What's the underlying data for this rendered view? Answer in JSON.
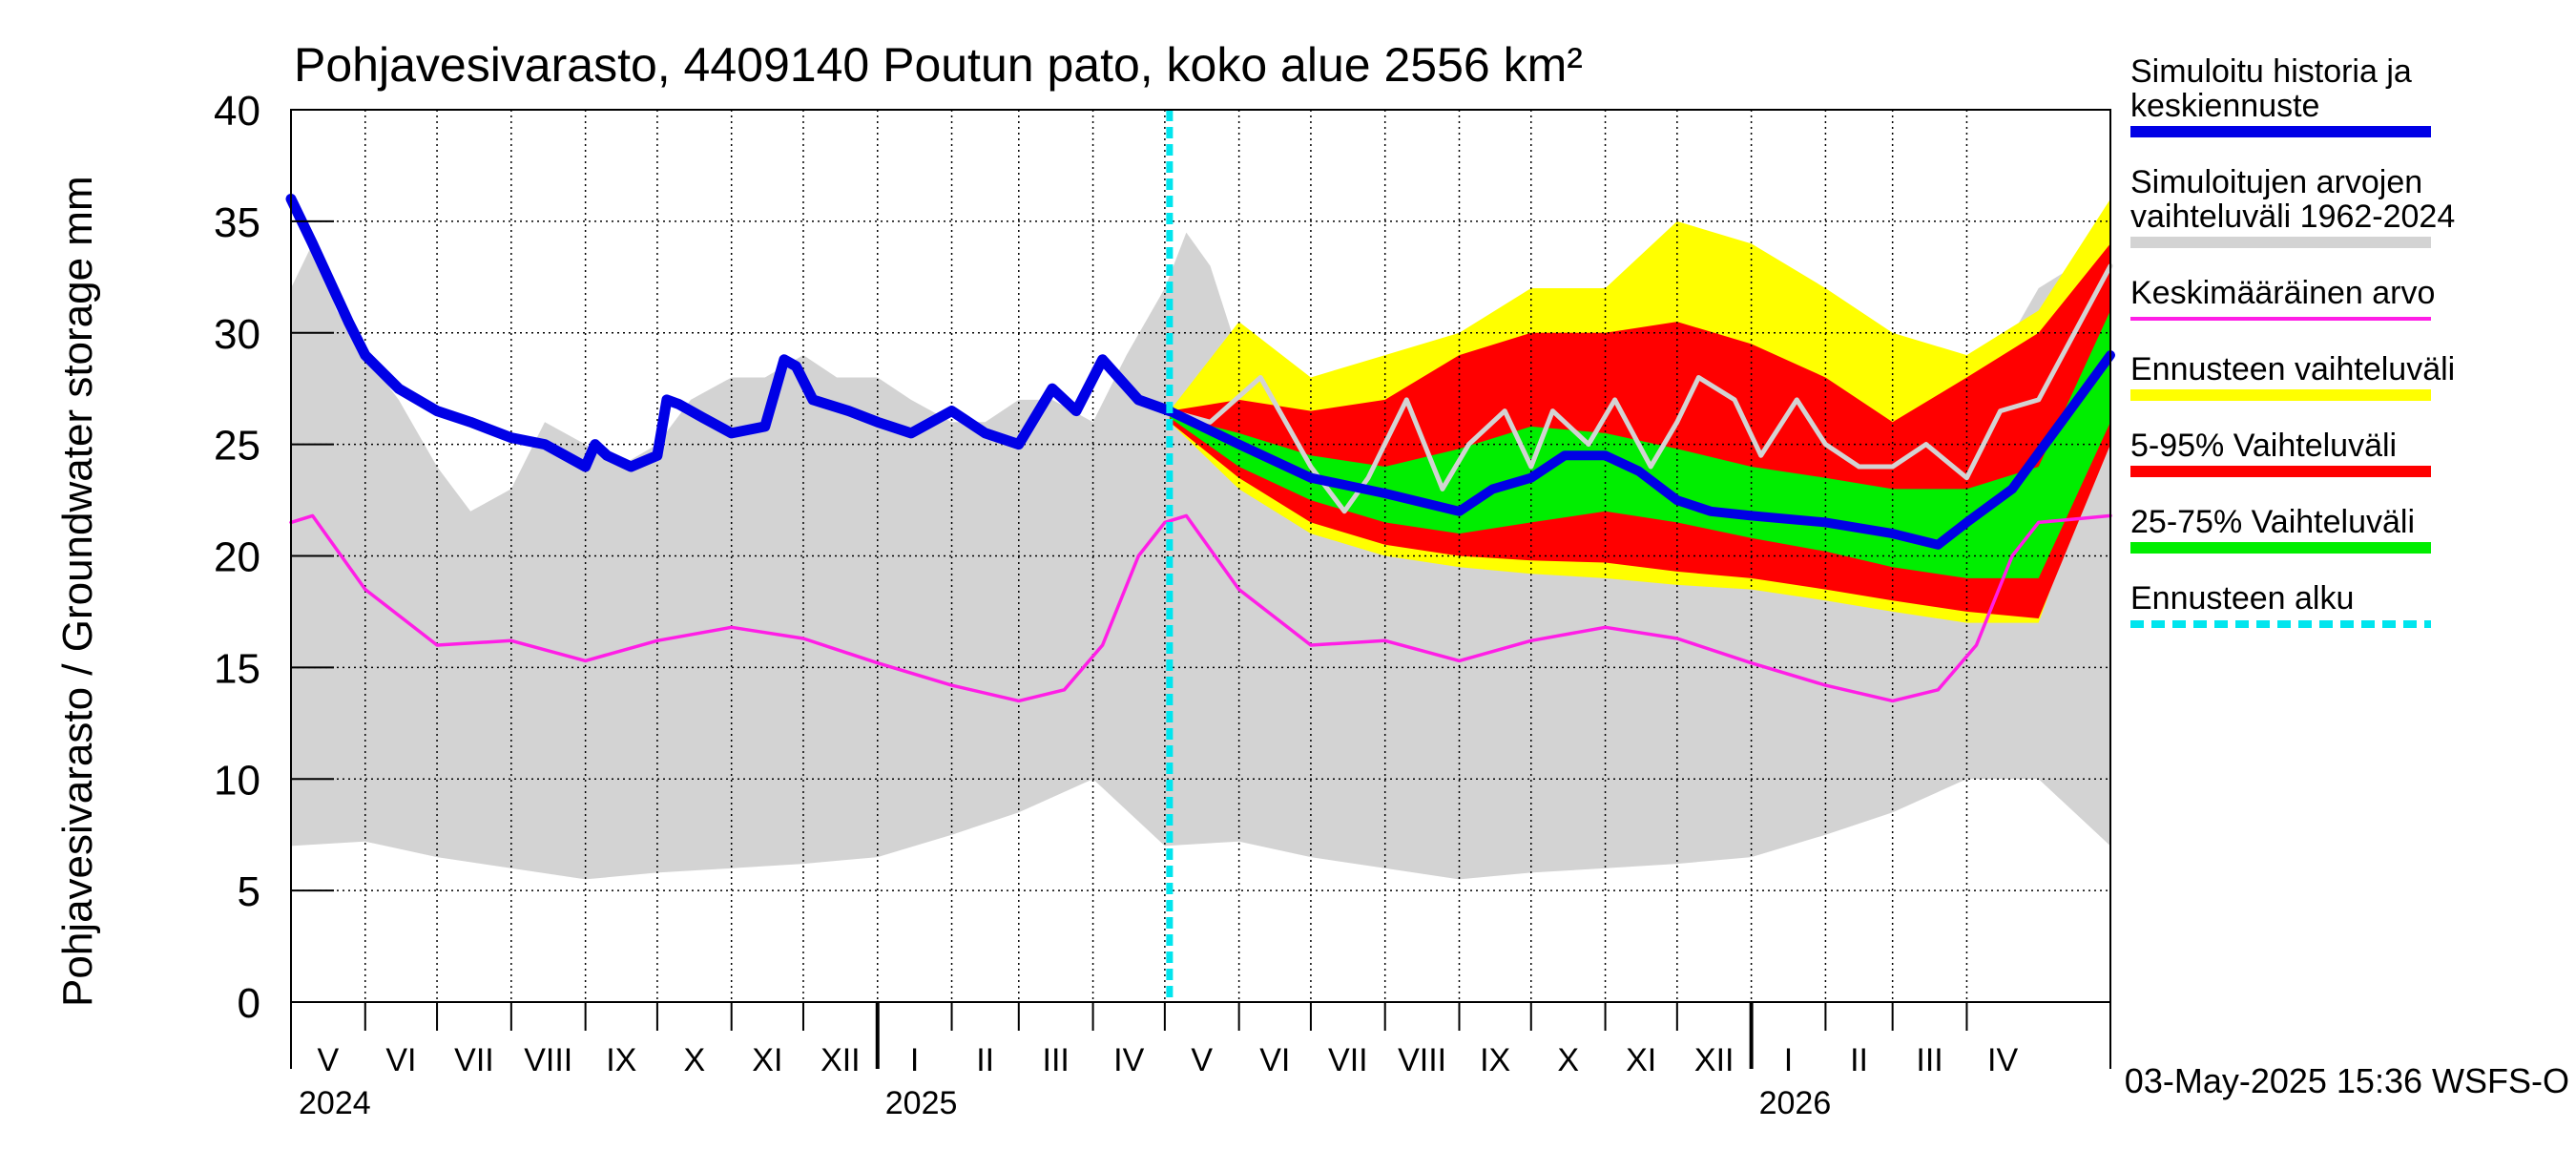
{
  "chart_data": {
    "type": "area",
    "title": "Pohjavesivarasto, 4409140 Poutun pato, koko alue 2556 km²",
    "ylabel": "Pohjavesivarasto / Groundwater storage   mm",
    "xlabel": "",
    "ylim": [
      0,
      40
    ],
    "yticks": [
      "0",
      "5",
      "10",
      "15",
      "20",
      "25",
      "30",
      "35",
      "40"
    ],
    "xlim": [
      "2024-05-01",
      "2026-05-31"
    ],
    "grid": true,
    "legend_position": "right",
    "month_labels": [
      {
        "label": "V",
        "start": "2024-05-01",
        "end": "2024-06-01"
      },
      {
        "label": "VI",
        "start": "2024-06-01",
        "end": "2024-07-01"
      },
      {
        "label": "VII",
        "start": "2024-07-01",
        "end": "2024-08-01"
      },
      {
        "label": "VIII",
        "start": "2024-08-01",
        "end": "2024-09-01"
      },
      {
        "label": "IX",
        "start": "2024-09-01",
        "end": "2024-10-01"
      },
      {
        "label": "X",
        "start": "2024-10-01",
        "end": "2024-11-01"
      },
      {
        "label": "XI",
        "start": "2024-11-01",
        "end": "2024-12-01"
      },
      {
        "label": "XII",
        "start": "2024-12-01",
        "end": "2025-01-01"
      },
      {
        "label": "I",
        "start": "2025-01-01",
        "end": "2025-02-01"
      },
      {
        "label": "II",
        "start": "2025-02-01",
        "end": "2025-03-01"
      },
      {
        "label": "III",
        "start": "2025-03-01",
        "end": "2025-04-01"
      },
      {
        "label": "IV",
        "start": "2025-04-01",
        "end": "2025-05-01"
      },
      {
        "label": "V",
        "start": "2025-05-01",
        "end": "2025-06-01"
      },
      {
        "label": "VI",
        "start": "2025-06-01",
        "end": "2025-07-01"
      },
      {
        "label": "VII",
        "start": "2025-07-01",
        "end": "2025-08-01"
      },
      {
        "label": "VIII",
        "start": "2025-08-01",
        "end": "2025-09-01"
      },
      {
        "label": "IX",
        "start": "2025-09-01",
        "end": "2025-10-01"
      },
      {
        "label": "X",
        "start": "2025-10-01",
        "end": "2025-11-01"
      },
      {
        "label": "XI",
        "start": "2025-11-01",
        "end": "2025-12-01"
      },
      {
        "label": "XII",
        "start": "2025-12-01",
        "end": "2026-01-01"
      },
      {
        "label": "I",
        "start": "2026-01-01",
        "end": "2026-02-01"
      },
      {
        "label": "II",
        "start": "2026-02-01",
        "end": "2026-03-01"
      },
      {
        "label": "III",
        "start": "2026-03-01",
        "end": "2026-04-01"
      },
      {
        "label": "IV",
        "start": "2026-04-01",
        "end": "2026-05-01"
      }
    ],
    "year_labels": [
      {
        "label": "2024",
        "date": "2024-05-01"
      },
      {
        "label": "2025",
        "date": "2025-01-01"
      },
      {
        "label": "2026",
        "date": "2026-01-01"
      }
    ],
    "forecast_start": "2025-05-03",
    "footer": "03-May-2025 15:36 WSFS-O",
    "colors": {
      "history": "#0000e6",
      "range": "#d3d3d3",
      "mean": "#ff1ee6",
      "forecast_range": "#ffff00",
      "p5_95": "#ff0000",
      "p25_75": "#00ee00",
      "forecast_start": "#00e5ee",
      "median": "#d3d3d3"
    },
    "legend": [
      {
        "key": "history",
        "label": "Simuloitu historia ja keskiennuste",
        "lines": [
          "Simuloitu historia ja",
          "keskiennuste"
        ]
      },
      {
        "key": "range",
        "label": "Simuloitujen arvojen vaihteluväli 1962-2024",
        "lines": [
          "Simuloitujen arvojen",
          "vaihteluväli 1962-2024"
        ]
      },
      {
        "key": "mean",
        "label": "Keskimääräinen arvo",
        "lines": [
          "Keskimääräinen arvo"
        ]
      },
      {
        "key": "forecast_range",
        "label": "Ennusteen vaihteluväli",
        "lines": [
          "Ennusteen vaihteluväli"
        ]
      },
      {
        "key": "p5_95",
        "label": "5-95% Vaihteluväli",
        "lines": [
          "5-95% Vaihteluväli"
        ]
      },
      {
        "key": "p25_75",
        "label": "25-75% Vaihteluväli",
        "lines": [
          "25-75% Vaihteluväli"
        ]
      },
      {
        "key": "forecast_start",
        "label": "Ennusteen alku",
        "lines": [
          "Ennusteen alku"
        ]
      }
    ],
    "series": {
      "range_upper": {
        "x": [
          "2024-05-01",
          "2024-05-10",
          "2024-05-20",
          "2024-06-01",
          "2024-06-15",
          "2024-07-01",
          "2024-07-15",
          "2024-08-01",
          "2024-08-15",
          "2024-09-01",
          "2024-09-15",
          "2024-10-01",
          "2024-10-15",
          "2024-11-01",
          "2024-11-15",
          "2024-12-01",
          "2024-12-15",
          "2025-01-01",
          "2025-01-15",
          "2025-02-01",
          "2025-02-15",
          "2025-03-01",
          "2025-03-15",
          "2025-04-01",
          "2025-04-15",
          "2025-05-01",
          "2025-05-10",
          "2025-05-20",
          "2025-06-01",
          "2025-06-15",
          "2025-07-01",
          "2025-07-15",
          "2025-08-01",
          "2025-08-15",
          "2025-09-01",
          "2025-09-15",
          "2025-10-01",
          "2025-10-15",
          "2025-11-01",
          "2025-11-15",
          "2025-12-01",
          "2025-12-15",
          "2026-01-01",
          "2026-01-15",
          "2026-02-01",
          "2026-02-15",
          "2026-03-01",
          "2026-03-15",
          "2026-04-01",
          "2026-04-15",
          "2026-05-01",
          "2026-05-31"
        ],
        "y": [
          32,
          34,
          31,
          29,
          27,
          24,
          22,
          23,
          26,
          25,
          24,
          25,
          27,
          28,
          28,
          29,
          28,
          28,
          27,
          26,
          26,
          27,
          27,
          26,
          29,
          32,
          34.5,
          33,
          29,
          27,
          24,
          22,
          23,
          26,
          25,
          24,
          25,
          27,
          28,
          28,
          29,
          28,
          28,
          27,
          26,
          26,
          27,
          27,
          26,
          29,
          32,
          34
        ]
      },
      "range_lower": {
        "x": [
          "2024-05-01",
          "2024-06-01",
          "2024-07-01",
          "2024-08-01",
          "2024-09-01",
          "2024-10-01",
          "2024-11-01",
          "2024-12-01",
          "2025-01-01",
          "2025-02-01",
          "2025-03-01",
          "2025-04-01",
          "2025-05-01",
          "2025-06-01",
          "2025-07-01",
          "2025-08-01",
          "2025-09-01",
          "2025-10-01",
          "2025-11-01",
          "2025-12-01",
          "2026-01-01",
          "2026-02-01",
          "2026-03-01",
          "2026-04-01",
          "2026-05-01",
          "2026-05-31"
        ],
        "y": [
          7,
          7.2,
          6.5,
          6,
          5.5,
          5.8,
          6,
          6.2,
          6.5,
          7.5,
          8.5,
          10,
          7,
          7.2,
          6.5,
          6,
          5.5,
          5.8,
          6,
          6.2,
          6.5,
          7.5,
          8.5,
          10,
          10,
          7
        ]
      },
      "mean": {
        "x": [
          "2024-05-01",
          "2024-05-10",
          "2024-06-01",
          "2024-07-01",
          "2024-08-01",
          "2024-09-01",
          "2024-10-01",
          "2024-11-01",
          "2024-12-01",
          "2025-01-01",
          "2025-02-01",
          "2025-03-01",
          "2025-03-20",
          "2025-04-05",
          "2025-04-20",
          "2025-05-01",
          "2025-05-10",
          "2025-06-01",
          "2025-07-01",
          "2025-08-01",
          "2025-09-01",
          "2025-10-01",
          "2025-11-01",
          "2025-12-01",
          "2026-01-01",
          "2026-02-01",
          "2026-03-01",
          "2026-03-20",
          "2026-04-05",
          "2026-04-20",
          "2026-05-01",
          "2026-05-31"
        ],
        "y": [
          21.5,
          21.8,
          18.5,
          16,
          16.2,
          15.3,
          16.2,
          16.8,
          16.3,
          15.2,
          14.2,
          13.5,
          14,
          16,
          20,
          21.5,
          21.8,
          18.5,
          16,
          16.2,
          15.3,
          16.2,
          16.8,
          16.3,
          15.2,
          14.2,
          13.5,
          14,
          16,
          20,
          21.5,
          21.8
        ]
      },
      "history": {
        "x": [
          "2024-05-01",
          "2024-05-10",
          "2024-05-25",
          "2024-06-01",
          "2024-06-15",
          "2024-07-01",
          "2024-07-15",
          "2024-08-01",
          "2024-08-15",
          "2024-09-01",
          "2024-09-05",
          "2024-09-10",
          "2024-09-20",
          "2024-10-01",
          "2024-10-05",
          "2024-10-10",
          "2024-10-20",
          "2024-11-01",
          "2024-11-15",
          "2024-11-23",
          "2024-11-28",
          "2024-12-05",
          "2024-12-20",
          "2025-01-01",
          "2025-01-15",
          "2025-02-01",
          "2025-02-15",
          "2025-03-01",
          "2025-03-15",
          "2025-03-25",
          "2025-04-05",
          "2025-04-20",
          "2025-05-03"
        ],
        "y": [
          36,
          34,
          30.5,
          29,
          27.5,
          26.5,
          26,
          25.3,
          25,
          24,
          25,
          24.5,
          24,
          24.5,
          27,
          26.8,
          26.2,
          25.5,
          25.8,
          28.8,
          28.5,
          27,
          26.5,
          26,
          25.5,
          26.5,
          25.5,
          25,
          27.5,
          26.5,
          28.8,
          27,
          26.5
        ]
      },
      "forecast_range_upper": {
        "x": [
          "2025-05-03",
          "2025-06-01",
          "2025-07-01",
          "2025-08-01",
          "2025-09-01",
          "2025-10-01",
          "2025-11-01",
          "2025-12-01",
          "2026-01-01",
          "2026-02-01",
          "2026-03-01",
          "2026-04-01",
          "2026-05-01",
          "2026-05-31"
        ],
        "y": [
          26.5,
          30.5,
          28,
          29,
          30,
          32,
          32,
          35,
          34,
          32,
          30,
          29,
          31,
          36
        ]
      },
      "forecast_range_lower": {
        "x": [
          "2025-05-03",
          "2025-06-01",
          "2025-07-01",
          "2025-08-01",
          "2025-09-01",
          "2025-10-01",
          "2025-11-01",
          "2025-12-01",
          "2026-01-01",
          "2026-02-01",
          "2026-03-01",
          "2026-04-01",
          "2026-05-01",
          "2026-05-31"
        ],
        "y": [
          26,
          23,
          21,
          20,
          19.5,
          19.2,
          19,
          18.7,
          18.5,
          18,
          17.5,
          17,
          17,
          26
        ]
      },
      "p5_95_upper": {
        "x": [
          "2025-05-03",
          "2025-06-01",
          "2025-07-01",
          "2025-08-01",
          "2025-09-01",
          "2025-10-01",
          "2025-11-01",
          "2025-12-01",
          "2026-01-01",
          "2026-02-01",
          "2026-03-01",
          "2026-04-01",
          "2026-05-01",
          "2026-05-31"
        ],
        "y": [
          26.5,
          27,
          26.5,
          27,
          29,
          30,
          30,
          30.5,
          29.5,
          28,
          26,
          28,
          30,
          34
        ]
      },
      "p5_95_lower": {
        "x": [
          "2025-05-03",
          "2025-06-01",
          "2025-07-01",
          "2025-08-01",
          "2025-09-01",
          "2025-10-01",
          "2025-11-01",
          "2025-12-01",
          "2026-01-01",
          "2026-02-01",
          "2026-03-01",
          "2026-04-01",
          "2026-05-01",
          "2026-05-31"
        ],
        "y": [
          26,
          23.5,
          21.5,
          20.5,
          20,
          19.8,
          19.7,
          19.3,
          19,
          18.5,
          18,
          17.5,
          17.2,
          25
        ]
      },
      "p25_75_upper": {
        "x": [
          "2025-05-03",
          "2025-06-01",
          "2025-07-01",
          "2025-08-01",
          "2025-09-01",
          "2025-10-01",
          "2025-11-01",
          "2025-12-01",
          "2026-01-01",
          "2026-02-01",
          "2026-03-01",
          "2026-04-01",
          "2026-05-01",
          "2026-05-31"
        ],
        "y": [
          26.3,
          25.5,
          24.5,
          24,
          24.8,
          25.8,
          25.5,
          24.8,
          24,
          23.5,
          23,
          23,
          24,
          31
        ]
      },
      "p25_75_lower": {
        "x": [
          "2025-05-03",
          "2025-06-01",
          "2025-07-01",
          "2025-08-01",
          "2025-09-01",
          "2025-10-01",
          "2025-11-01",
          "2025-12-01",
          "2026-01-01",
          "2026-02-01",
          "2026-03-01",
          "2026-04-01",
          "2026-05-01",
          "2026-05-31"
        ],
        "y": [
          26.2,
          24,
          22.5,
          21.5,
          21,
          21.5,
          22,
          21.5,
          20.8,
          20.2,
          19.5,
          19,
          19,
          26
        ]
      },
      "forecast_median": {
        "x": [
          "2025-05-03",
          "2025-05-20",
          "2025-06-10",
          "2025-07-01",
          "2025-07-15",
          "2025-07-25",
          "2025-08-10",
          "2025-08-25",
          "2025-09-05",
          "2025-09-20",
          "2025-10-01",
          "2025-10-10",
          "2025-10-25",
          "2025-11-05",
          "2025-11-20",
          "2025-12-01",
          "2025-12-10",
          "2025-12-25",
          "2026-01-05",
          "2026-01-20",
          "2026-02-01",
          "2026-02-15",
          "2026-03-01",
          "2026-03-15",
          "2026-04-01",
          "2026-04-15",
          "2026-05-01",
          "2026-05-31"
        ],
        "y": [
          26.5,
          26,
          28,
          24,
          22,
          23.5,
          27,
          23,
          25,
          26.5,
          24,
          26.5,
          25,
          27,
          24,
          26,
          28,
          27,
          24.5,
          27,
          25,
          24,
          24,
          25,
          23.5,
          26.5,
          27,
          33
        ]
      },
      "forecast_mean": {
        "x": [
          "2025-05-03",
          "2025-06-01",
          "2025-07-01",
          "2025-08-01",
          "2025-09-01",
          "2025-09-15",
          "2025-10-01",
          "2025-10-15",
          "2025-11-01",
          "2025-11-15",
          "2025-12-01",
          "2025-12-15",
          "2026-01-01",
          "2026-02-01",
          "2026-03-01",
          "2026-03-20",
          "2026-04-01",
          "2026-04-20",
          "2026-05-31"
        ],
        "y": [
          26.5,
          25,
          23.5,
          22.8,
          22,
          23,
          23.5,
          24.5,
          24.5,
          23.8,
          22.5,
          22,
          21.8,
          21.5,
          21,
          20.5,
          21.5,
          23,
          29
        ]
      }
    }
  }
}
